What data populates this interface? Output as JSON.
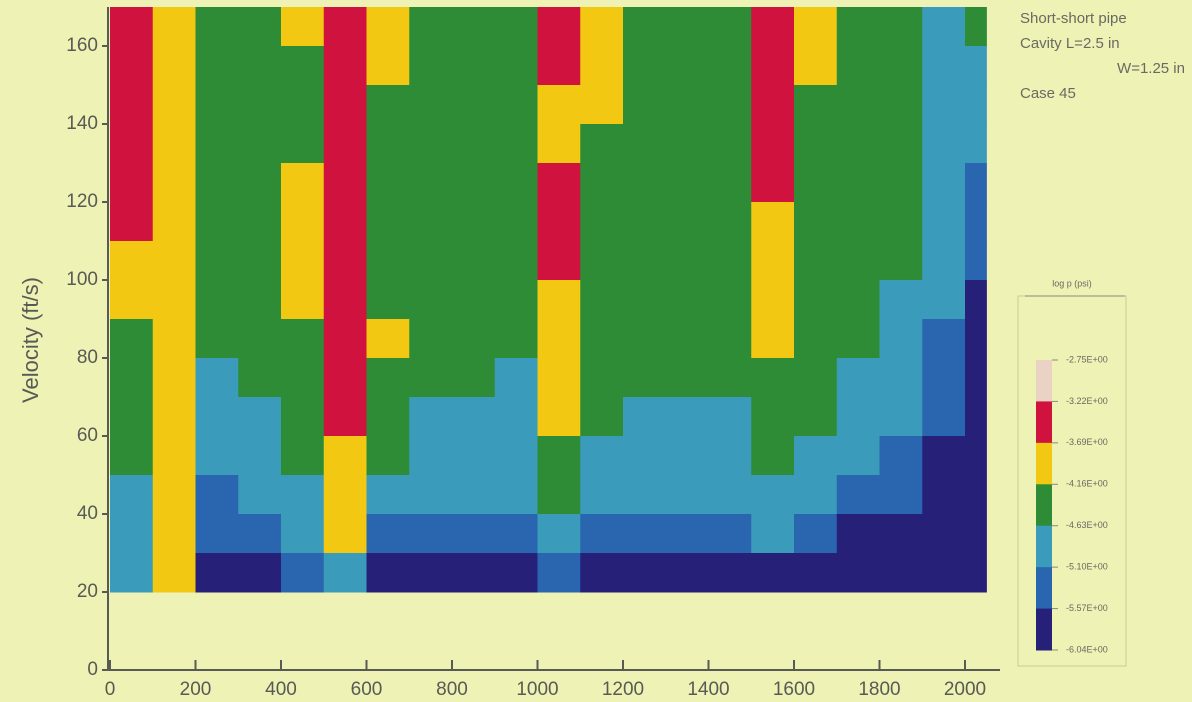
{
  "chart_data": {
    "type": "heatmap",
    "y_label": "Velocity (ft/s)",
    "annotations": [
      "Short-short pipe",
      "Cavity L=2.5 in",
      "W=1.25 in",
      "Case 45"
    ],
    "xlim": [
      0,
      2060
    ],
    "ylim": [
      0,
      170
    ],
    "xticks": [
      0,
      200,
      400,
      600,
      800,
      1000,
      1200,
      1400,
      1600,
      1800,
      2000
    ],
    "yticks": [
      0,
      20,
      40,
      60,
      80,
      100,
      120,
      140,
      160
    ],
    "x_edges": [
      0,
      100,
      200,
      300,
      400,
      500,
      600,
      700,
      800,
      900,
      1000,
      1100,
      1200,
      1300,
      1400,
      1500,
      1600,
      1700,
      1800,
      1900,
      2000,
      2050
    ],
    "y_edges": [
      170,
      160,
      150,
      140,
      130,
      120,
      110,
      100,
      90,
      80,
      70,
      60,
      50,
      40,
      30,
      20
    ],
    "z": [
      [
        -3.45,
        -3.9,
        -4.4,
        -4.4,
        -3.9,
        -3.45,
        -3.9,
        -4.4,
        -4.4,
        -4.4,
        -3.45,
        -3.9,
        -4.4,
        -4.4,
        -4.4,
        -3.45,
        -3.9,
        -4.4,
        -4.4,
        -4.85,
        -4.4
      ],
      [
        -3.45,
        -3.9,
        -4.4,
        -4.4,
        -4.4,
        -3.45,
        -3.9,
        -4.4,
        -4.4,
        -4.4,
        -3.45,
        -3.9,
        -4.4,
        -4.4,
        -4.4,
        -3.45,
        -3.9,
        -4.4,
        -4.4,
        -4.85,
        -4.85
      ],
      [
        -3.45,
        -3.9,
        -4.4,
        -4.4,
        -4.4,
        -3.45,
        -4.4,
        -4.4,
        -4.4,
        -4.4,
        -3.9,
        -3.9,
        -4.4,
        -4.4,
        -4.4,
        -3.45,
        -4.4,
        -4.4,
        -4.4,
        -4.85,
        -4.85
      ],
      [
        -3.45,
        -3.9,
        -4.4,
        -4.4,
        -4.4,
        -3.45,
        -4.4,
        -4.4,
        -4.4,
        -4.4,
        -3.9,
        -4.4,
        -4.4,
        -4.4,
        -4.4,
        -3.45,
        -4.4,
        -4.4,
        -4.4,
        -4.85,
        -4.85
      ],
      [
        -3.45,
        -3.9,
        -4.4,
        -4.4,
        -3.9,
        -3.45,
        -4.4,
        -4.4,
        -4.4,
        -4.4,
        -3.45,
        -4.4,
        -4.4,
        -4.4,
        -4.4,
        -3.45,
        -4.4,
        -4.4,
        -4.4,
        -4.85,
        -5.3
      ],
      [
        -3.45,
        -3.9,
        -4.4,
        -4.4,
        -3.9,
        -3.45,
        -4.4,
        -4.4,
        -4.4,
        -4.4,
        -3.45,
        -4.4,
        -4.4,
        -4.4,
        -4.4,
        -3.9,
        -4.4,
        -4.4,
        -4.4,
        -4.85,
        -5.3
      ],
      [
        -3.9,
        -3.9,
        -4.4,
        -4.4,
        -3.9,
        -3.45,
        -4.4,
        -4.4,
        -4.4,
        -4.4,
        -3.45,
        -4.4,
        -4.4,
        -4.4,
        -4.4,
        -3.9,
        -4.4,
        -4.4,
        -4.4,
        -4.85,
        -5.3
      ],
      [
        -3.9,
        -3.9,
        -4.4,
        -4.4,
        -3.9,
        -3.45,
        -4.4,
        -4.4,
        -4.4,
        -4.4,
        -3.9,
        -4.4,
        -4.4,
        -4.4,
        -4.4,
        -3.9,
        -4.4,
        -4.4,
        -4.85,
        -4.85,
        -5.8
      ],
      [
        -4.4,
        -3.9,
        -4.4,
        -4.4,
        -4.4,
        -3.45,
        -3.9,
        -4.4,
        -4.4,
        -4.4,
        -3.9,
        -4.4,
        -4.4,
        -4.4,
        -4.4,
        -3.9,
        -4.4,
        -4.4,
        -4.85,
        -5.3,
        -5.8
      ],
      [
        -4.4,
        -3.9,
        -4.85,
        -4.4,
        -4.4,
        -3.45,
        -4.4,
        -4.4,
        -4.4,
        -4.85,
        -3.9,
        -4.4,
        -4.4,
        -4.4,
        -4.4,
        -4.4,
        -4.4,
        -4.85,
        -4.85,
        -5.3,
        -5.8
      ],
      [
        -4.4,
        -3.9,
        -4.85,
        -4.85,
        -4.4,
        -3.45,
        -4.4,
        -4.85,
        -4.85,
        -4.85,
        -3.9,
        -4.4,
        -4.85,
        -4.85,
        -4.85,
        -4.4,
        -4.4,
        -4.85,
        -4.85,
        -5.3,
        -5.8
      ],
      [
        -4.4,
        -3.9,
        -4.85,
        -4.85,
        -4.4,
        -3.9,
        -4.4,
        -4.85,
        -4.85,
        -4.85,
        -4.4,
        -4.85,
        -4.85,
        -4.85,
        -4.85,
        -4.4,
        -4.85,
        -4.85,
        -5.3,
        -5.8,
        -5.8
      ],
      [
        -4.85,
        -3.9,
        -5.3,
        -4.85,
        -4.85,
        -3.9,
        -4.85,
        -4.85,
        -4.85,
        -4.85,
        -4.4,
        -4.85,
        -4.85,
        -4.85,
        -4.85,
        -4.85,
        -4.85,
        -5.3,
        -5.3,
        -5.8,
        -5.8
      ],
      [
        -4.85,
        -3.9,
        -5.3,
        -5.3,
        -4.85,
        -3.9,
        -5.3,
        -5.3,
        -5.3,
        -5.3,
        -4.85,
        -5.3,
        -5.3,
        -5.3,
        -5.3,
        -4.85,
        -5.3,
        -5.8,
        -5.8,
        -5.8,
        -5.8
      ],
      [
        -4.85,
        -3.9,
        -5.8,
        -5.8,
        -5.3,
        -4.85,
        -5.8,
        -5.8,
        -5.8,
        -5.8,
        -5.3,
        -5.8,
        -5.8,
        -5.8,
        -5.8,
        -5.8,
        -5.8,
        -5.8,
        -5.8,
        -5.8,
        -5.8
      ]
    ],
    "colorbar": {
      "title": "log p (psi)",
      "ticks": [
        {
          "value": -2.75,
          "label": "-2.75E+00"
        },
        {
          "value": -3.22,
          "label": "-3.22E+00"
        },
        {
          "value": -3.69,
          "label": "-3.69E+00"
        },
        {
          "value": -4.16,
          "label": "-4.16E+00"
        },
        {
          "value": -4.63,
          "label": "-4.63E+00"
        },
        {
          "value": -5.1,
          "label": "-5.10E+00"
        },
        {
          "value": -5.57,
          "label": "-5.57E+00"
        },
        {
          "value": -6.04,
          "label": "-6.04E+00"
        }
      ],
      "colors": [
        "#ead2c4",
        "#d0123e",
        "#f2c812",
        "#2f8c36",
        "#3a9cba",
        "#2a66b0",
        "#262078"
      ]
    }
  }
}
